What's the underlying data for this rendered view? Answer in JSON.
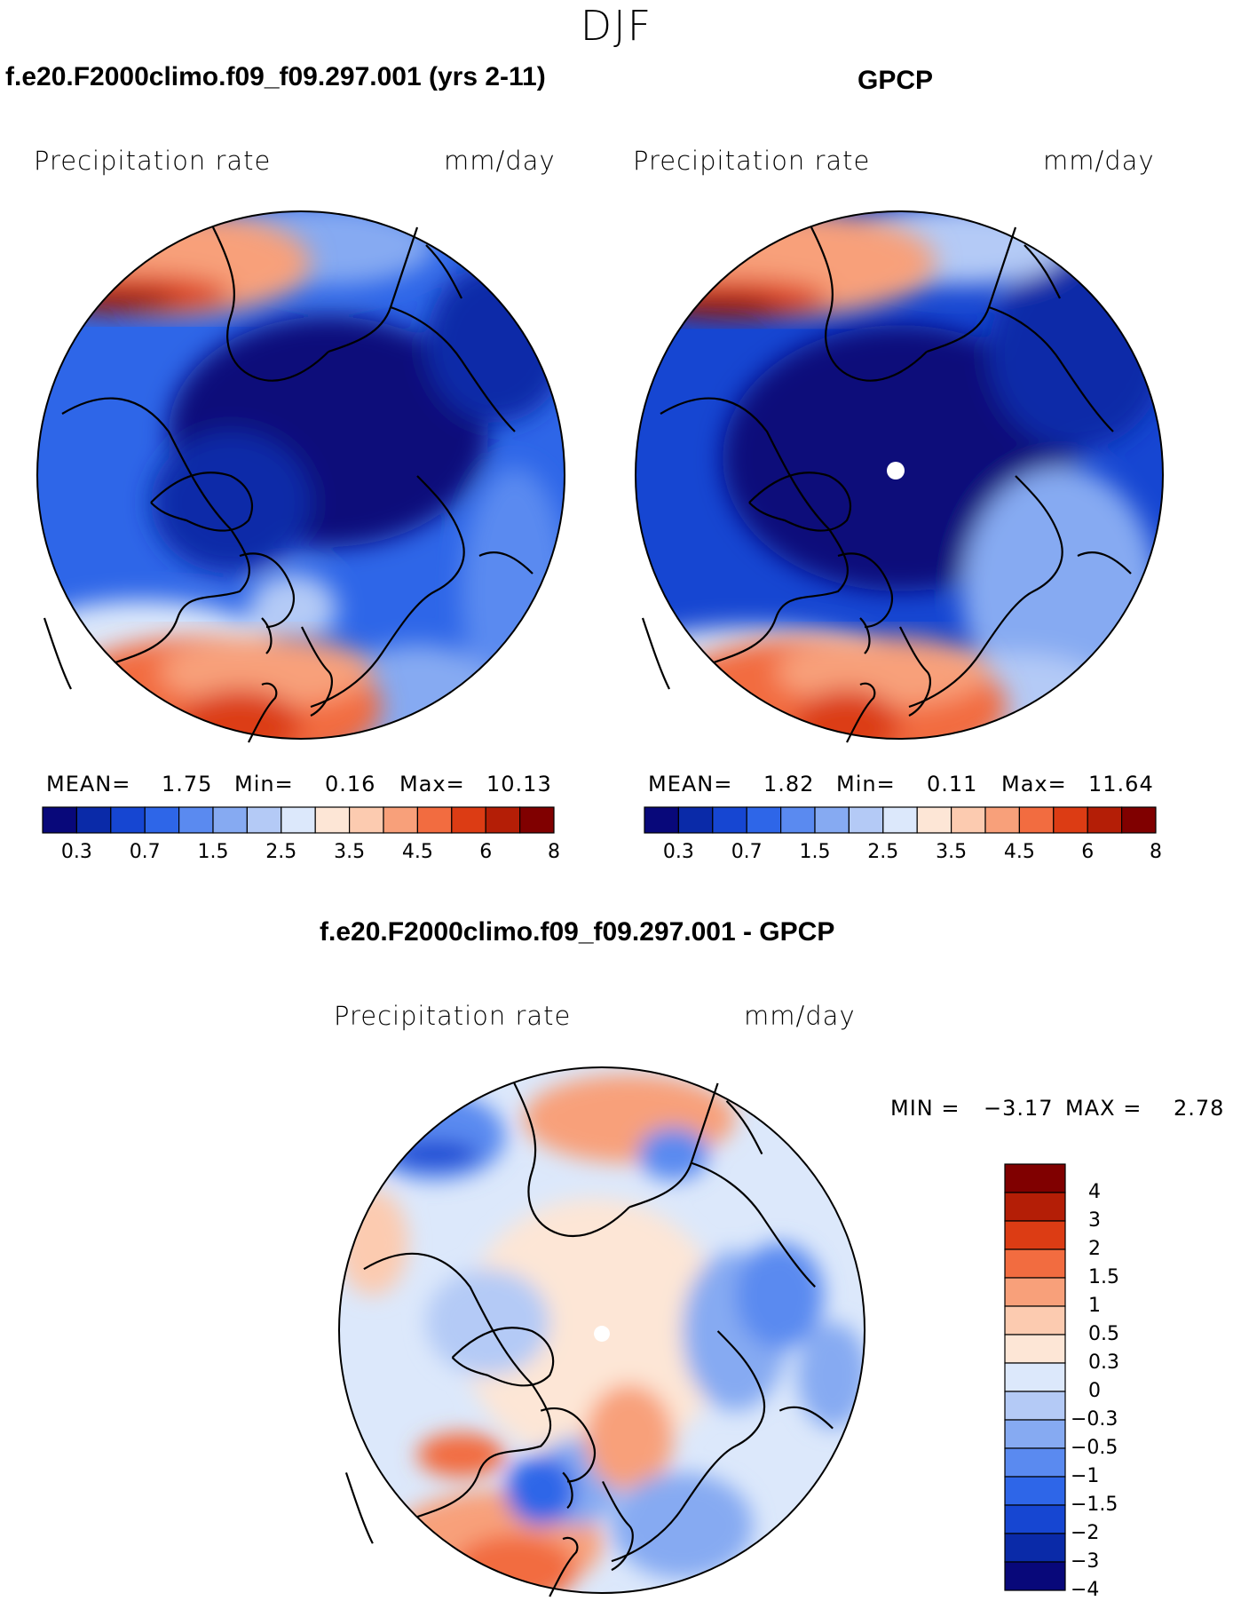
{
  "season": "DJF",
  "panels": [
    {
      "title": "f.e20.F2000climo.f09_f09.297.001 (yrs 2-11)",
      "variable": "Precipitation rate",
      "units": "mm/day",
      "mean_label": "MEAN=",
      "mean": "1.75",
      "min_label": "Min=",
      "min": "0.16",
      "max_label": "Max=",
      "max": "10.13"
    },
    {
      "title": "GPCP",
      "variable": "Precipitation rate",
      "units": "mm/day",
      "mean_label": "MEAN=",
      "mean": "1.82",
      "min_label": "Min=",
      "min": "0.11",
      "max_label": "Max=",
      "max": "11.64"
    }
  ],
  "diff_panel": {
    "title": "f.e20.F2000climo.f09_f09.297.001 - GPCP",
    "variable": "Precipitation rate",
    "units": "mm/day",
    "min_label": "MIN =",
    "min": "−3.17",
    "max_label": "MAX =",
    "max": "2.78"
  },
  "precip_colorbar": {
    "colors": [
      "#08087a",
      "#0a2aa8",
      "#1646d2",
      "#2e66e8",
      "#5a8af0",
      "#86aaf2",
      "#b4caf6",
      "#dce8fb",
      "#fde6d6",
      "#fccbb0",
      "#f8a07a",
      "#f26c40",
      "#dc3c14",
      "#b41e06",
      "#800000"
    ],
    "tick_labels": [
      "0.3",
      "0.7",
      "1.5",
      "2.5",
      "3.5",
      "4.5",
      "6",
      "8"
    ]
  },
  "diff_colorbar": {
    "colors": [
      "#800000",
      "#b41e06",
      "#dc3c14",
      "#f26c40",
      "#f8a07a",
      "#fccbb0",
      "#fde6d6",
      "#dce8fb",
      "#b4caf6",
      "#86aaf2",
      "#5a8af0",
      "#2e66e8",
      "#1646d2",
      "#0a2aa8",
      "#08087a"
    ],
    "tick_labels": [
      "4",
      "3",
      "2",
      "1.5",
      "1",
      "0.5",
      "0.3",
      "0",
      "−0.3",
      "−0.5",
      "−1",
      "−1.5",
      "−2",
      "−3",
      "−4"
    ]
  }
}
